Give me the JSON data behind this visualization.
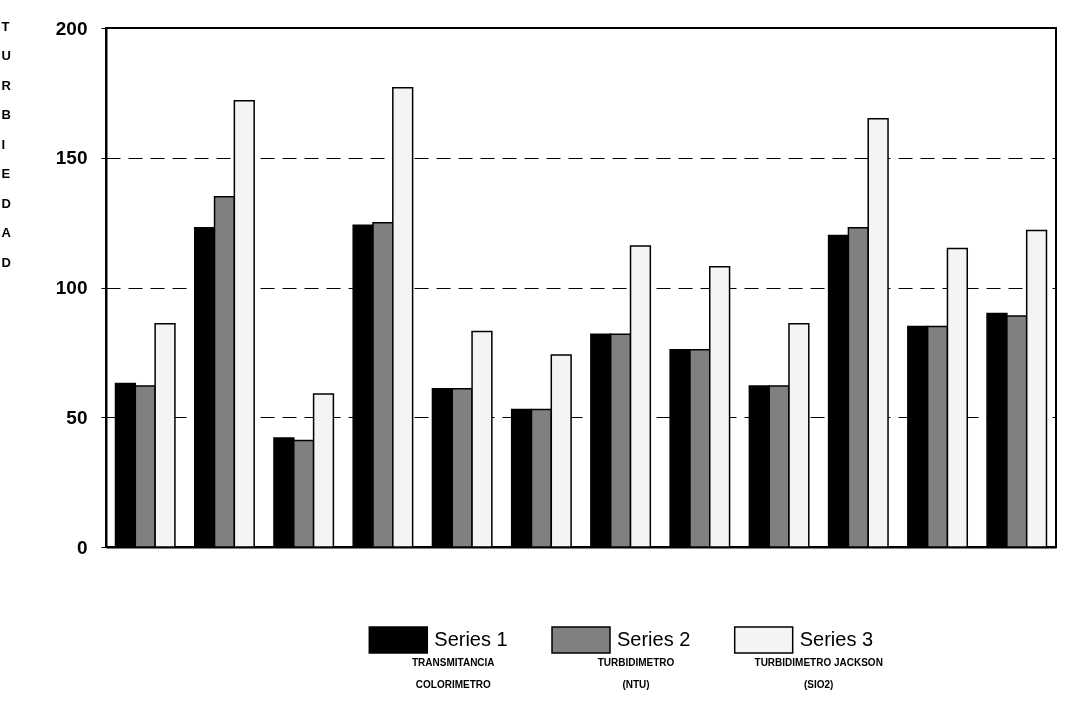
{
  "chart_data": {
    "type": "bar",
    "ylabel": "TURBIEDAD",
    "categories": [
      null,
      null,
      null,
      null,
      null,
      null,
      null,
      null,
      null,
      null,
      null,
      null
    ],
    "series": [
      {
        "name": "Series 1",
        "color": "#000000",
        "values": [
          63,
          123,
          42,
          124,
          61,
          53,
          82,
          76,
          62,
          120,
          85,
          90
        ]
      },
      {
        "name": "Series 2",
        "color": "#808080",
        "values": [
          62,
          135,
          41,
          125,
          61,
          53,
          82,
          76,
          62,
          123,
          85,
          89
        ]
      },
      {
        "name": "Series 3",
        "color": "#f4f4f4",
        "values": [
          86,
          172,
          59,
          177,
          83,
          74,
          116,
          108,
          86,
          165,
          115,
          122
        ]
      }
    ],
    "annotations": [
      "TRANSMITANCIA\nCOLORIMETRO",
      "TURBIDIMETRO\n(NTU)",
      "TURBIDIMETRO JACKSON\n(SIO2)"
    ],
    "ylim": [
      0,
      200
    ],
    "yticks": [
      0,
      50,
      100,
      150,
      200
    ],
    "grid": "y",
    "legend": "bottom"
  }
}
